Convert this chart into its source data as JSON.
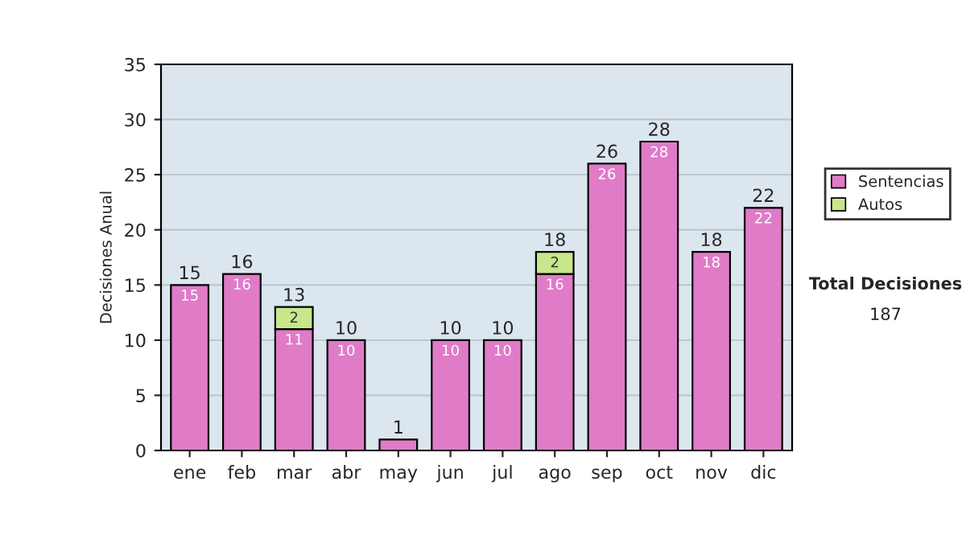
{
  "chart_data": {
    "type": "bar",
    "stacked": true,
    "ylabel": "Decisiones Anual",
    "categories": [
      "ene",
      "feb",
      "mar",
      "abr",
      "may",
      "jun",
      "jul",
      "ago",
      "sep",
      "oct",
      "nov",
      "dic"
    ],
    "series": [
      {
        "name": "Sentencias",
        "color": "#e07bc8",
        "values": [
          15,
          16,
          11,
          10,
          1,
          10,
          10,
          16,
          26,
          28,
          18,
          22
        ],
        "value_labels": [
          "15",
          "16",
          "11",
          "10",
          null,
          "10",
          "10",
          "16",
          "26",
          "28",
          "18",
          "22"
        ]
      },
      {
        "name": "Autos",
        "color": "#c8e68c",
        "values": [
          null,
          null,
          2,
          null,
          null,
          null,
          null,
          2,
          null,
          null,
          null,
          null
        ],
        "value_labels": [
          null,
          null,
          "2",
          null,
          null,
          null,
          null,
          "2",
          null,
          null,
          null,
          null
        ]
      }
    ],
    "totals": [
      "15",
      "16",
      "13",
      "10",
      "1",
      "10",
      "10",
      "18",
      "26",
      "28",
      "18",
      "22"
    ],
    "ylim": [
      0,
      35
    ],
    "yticks": [
      0,
      5,
      10,
      15,
      20,
      25,
      30,
      35
    ],
    "grid": "y",
    "legend": "right",
    "annotations": [
      "Total Decisiones",
      "187"
    ]
  }
}
